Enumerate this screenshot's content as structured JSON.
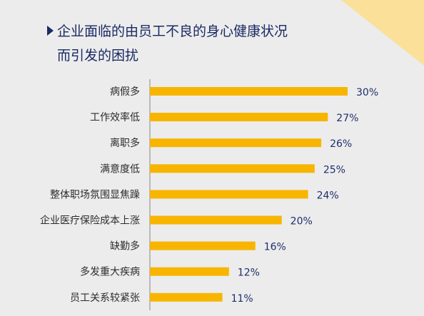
{
  "colors": {
    "background": "#ececec",
    "accent_corner": "#fbe09a",
    "bar": "#f7b500",
    "axis": "#888888",
    "title": "#1a2a64",
    "value_label": "#1f2f6a",
    "category_label": "#2c2c2c"
  },
  "icons": {
    "title_marker": "triangle-right-icon"
  },
  "chart_data": {
    "type": "bar",
    "orientation": "horizontal",
    "title_lines": [
      "企业面临的由员工不良的身心健康状况",
      "而引发的困扰"
    ],
    "categories": [
      "病假多",
      "工作效率低",
      "离职多",
      "满意度低",
      "整体职场氛围显焦躁",
      "企业医疗保险成本上涨",
      "缺勤多",
      "多发重大疾病",
      "员工关系较紧张"
    ],
    "values": [
      30,
      27,
      26,
      25,
      24,
      20,
      16,
      12,
      11
    ],
    "value_labels": [
      "30%",
      "27%",
      "26%",
      "25%",
      "24%",
      "20%",
      "16%",
      "12%",
      "11%"
    ],
    "unit": "%",
    "xlim": [
      0,
      30
    ],
    "grid": false,
    "legend": "none"
  }
}
